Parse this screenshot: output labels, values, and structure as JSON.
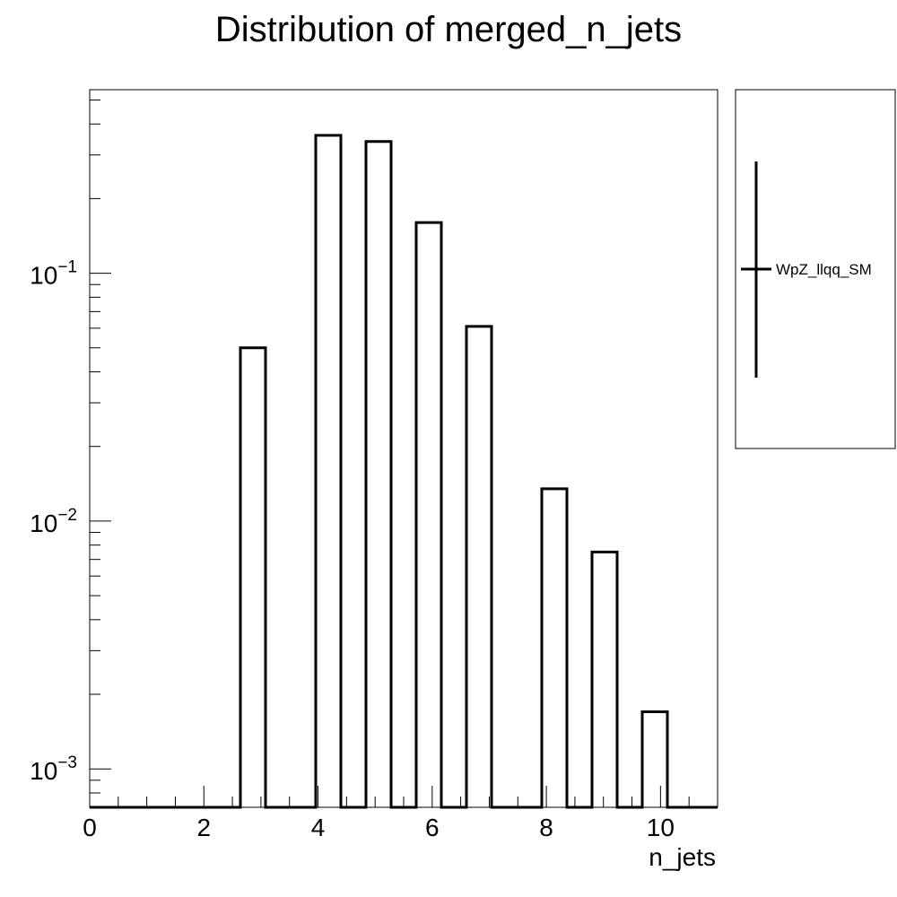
{
  "chart_data": {
    "type": "bar",
    "title": "Distribution of merged_n_jets",
    "xlabel": "n_jets",
    "ylabel": "",
    "xlim": [
      0,
      11
    ],
    "ylim": [
      0.0007,
      0.55
    ],
    "yscale": "log",
    "grid": false,
    "legend_position": "right",
    "x_ticks": [
      "0",
      "2",
      "4",
      "6",
      "8",
      "10"
    ],
    "y_ticks": [
      {
        "base": "10",
        "exp": "−3",
        "value": 0.001
      },
      {
        "base": "10",
        "exp": "−2",
        "value": 0.01
      },
      {
        "base": "10",
        "exp": "−1",
        "value": 0.1
      }
    ],
    "bins": [
      {
        "x0": 2.64,
        "x1": 3.08,
        "value": 0.05
      },
      {
        "x0": 3.96,
        "x1": 4.4,
        "value": 0.36
      },
      {
        "x0": 4.84,
        "x1": 5.28,
        "value": 0.34
      },
      {
        "x0": 5.72,
        "x1": 6.16,
        "value": 0.16
      },
      {
        "x0": 6.6,
        "x1": 7.04,
        "value": 0.061
      },
      {
        "x0": 7.92,
        "x1": 8.36,
        "value": 0.0135
      },
      {
        "x0": 8.8,
        "x1": 9.24,
        "value": 0.0075
      },
      {
        "x0": 9.68,
        "x1": 10.12,
        "value": 0.0017
      }
    ],
    "series": [
      {
        "name": "WpZ_llqq_SM",
        "color": "#000000"
      }
    ]
  }
}
